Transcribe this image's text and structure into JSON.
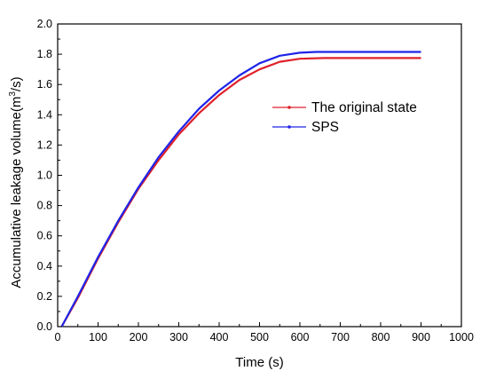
{
  "chart_data": {
    "type": "line",
    "xlabel": "Time (s)",
    "ylabel_main": "Accumulative leakage volume(m",
    "ylabel_sup": "3",
    "ylabel_tail": "/s)",
    "xlim": [
      0,
      1000
    ],
    "ylim": [
      0.0,
      2.0
    ],
    "xticks": [
      "0",
      "100",
      "200",
      "300",
      "400",
      "500",
      "600",
      "700",
      "800",
      "900",
      "1000"
    ],
    "yticks": [
      "0.0",
      "0.2",
      "0.4",
      "0.6",
      "0.8",
      "1.0",
      "1.2",
      "1.4",
      "1.6",
      "1.8",
      "2.0"
    ],
    "grid": false,
    "legend_position": "right-middle",
    "series": [
      {
        "name": "The original state",
        "color": "#e0202a",
        "points": [
          [
            10,
            0.0
          ],
          [
            50,
            0.19
          ],
          [
            100,
            0.45
          ],
          [
            150,
            0.69
          ],
          [
            200,
            0.91
          ],
          [
            250,
            1.1
          ],
          [
            300,
            1.27
          ],
          [
            350,
            1.41
          ],
          [
            400,
            1.53
          ],
          [
            450,
            1.63
          ],
          [
            500,
            1.7
          ],
          [
            550,
            1.75
          ],
          [
            600,
            1.77
          ],
          [
            660,
            1.775
          ],
          [
            700,
            1.775
          ],
          [
            800,
            1.775
          ],
          [
            900,
            1.775
          ]
        ]
      },
      {
        "name": "SPS",
        "color": "#1f24e8",
        "points": [
          [
            10,
            0.0
          ],
          [
            50,
            0.2
          ],
          [
            100,
            0.46
          ],
          [
            150,
            0.7
          ],
          [
            200,
            0.92
          ],
          [
            250,
            1.12
          ],
          [
            300,
            1.29
          ],
          [
            350,
            1.44
          ],
          [
            400,
            1.56
          ],
          [
            450,
            1.66
          ],
          [
            500,
            1.74
          ],
          [
            550,
            1.79
          ],
          [
            600,
            1.81
          ],
          [
            640,
            1.815
          ],
          [
            700,
            1.815
          ],
          [
            800,
            1.815
          ],
          [
            900,
            1.815
          ]
        ]
      }
    ]
  }
}
